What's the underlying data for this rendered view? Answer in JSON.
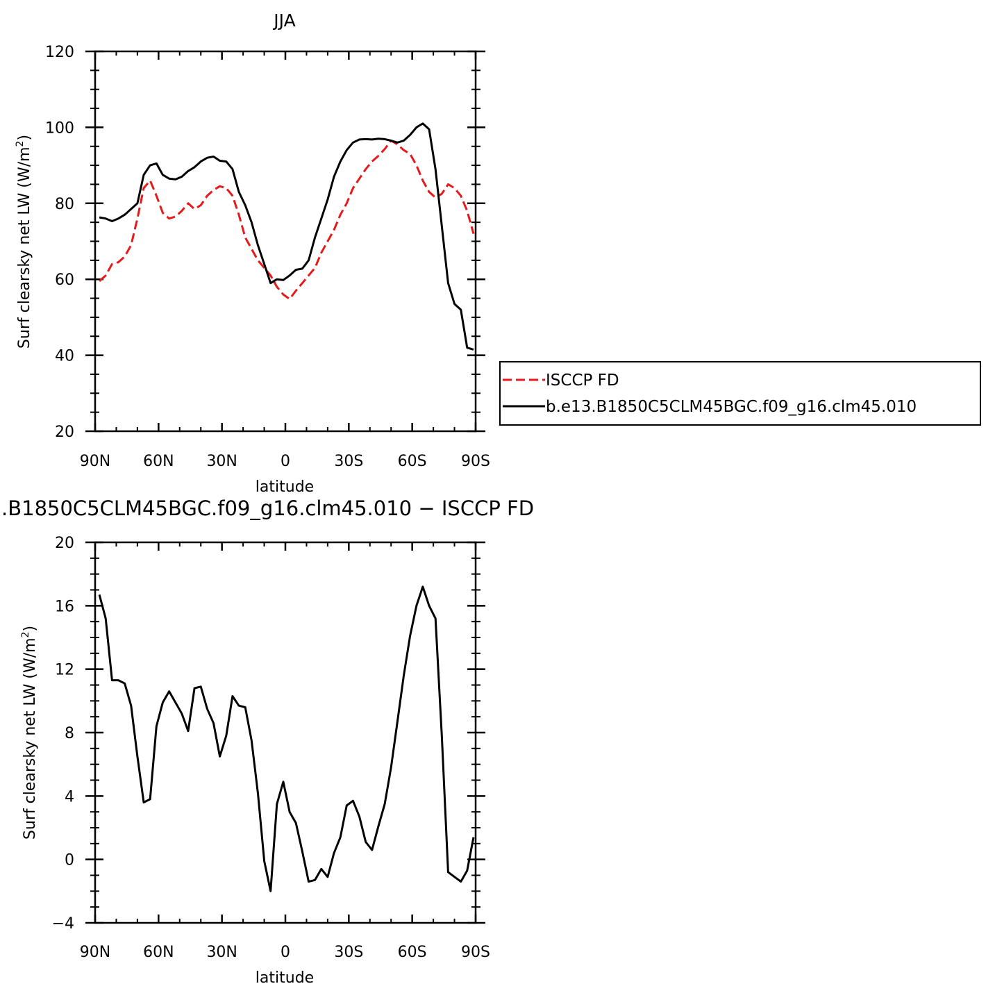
{
  "chart_data": [
    {
      "type": "line",
      "title": "JJA",
      "xlabel": "latitude",
      "ylabel": "Surf clearsky net LW (W/m²)",
      "ylabel_parts": [
        "Surf clearsky net LW (W/m",
        "2",
        ")"
      ],
      "xlim": [
        90,
        -90
      ],
      "ylim": [
        20,
        120
      ],
      "x_ticks": [
        90,
        60,
        30,
        0,
        -30,
        -60,
        -90
      ],
      "x_tick_labels": [
        "90N",
        "60N",
        "30N",
        "0",
        "30S",
        "60S",
        "90S"
      ],
      "y_ticks": [
        20,
        40,
        60,
        80,
        100,
        120
      ],
      "y_tick_labels": [
        "20",
        "40",
        "60",
        "80",
        "100",
        "120"
      ],
      "legend_position": "right",
      "series": [
        {
          "name": "ISCCP FD",
          "color": "#e41a1c",
          "dash": "dashed",
          "x": [
            88,
            85,
            82,
            79,
            76,
            73,
            70,
            67,
            64,
            61,
            58,
            55,
            52,
            49,
            46,
            43,
            40,
            37,
            34,
            31,
            28,
            25,
            22,
            19,
            16,
            13,
            10,
            7,
            4,
            1,
            -2,
            -5,
            -8,
            -11,
            -14,
            -17,
            -20,
            -23,
            -26,
            -29,
            -32,
            -35,
            -38,
            -41,
            -44,
            -47,
            -50,
            -53,
            -56,
            -59,
            -62,
            -65,
            -68,
            -71,
            -74,
            -77,
            -80,
            -83,
            -86,
            -89
          ],
          "y": [
            59.5,
            61,
            64,
            64.5,
            66,
            69,
            76,
            84,
            86,
            82,
            77.5,
            76,
            76.5,
            78,
            80,
            78.5,
            79.5,
            82,
            83.5,
            84.5,
            84,
            82,
            77,
            71,
            68,
            65,
            63,
            61,
            58,
            56,
            54.8,
            57,
            59,
            61,
            63,
            67,
            70,
            73,
            77,
            80,
            84,
            86.5,
            89,
            91,
            92.5,
            94.3,
            96.5,
            95.5,
            94,
            93,
            90,
            86,
            83,
            81.5,
            82.5,
            85,
            84,
            82,
            78,
            72
          ]
        },
        {
          "name": "b.e13.B1850C5CLM45BGC.f09_g16.clm45.010",
          "color": "#000000",
          "dash": "solid",
          "x": [
            88,
            85,
            82,
            79,
            76,
            73,
            70,
            67,
            64,
            61,
            58,
            55,
            52,
            49,
            46,
            43,
            40,
            37,
            34,
            31,
            28,
            25,
            22,
            19,
            16,
            13,
            10,
            7,
            4,
            1,
            -2,
            -5,
            -8,
            -11,
            -14,
            -17,
            -20,
            -23,
            -26,
            -29,
            -32,
            -35,
            -38,
            -41,
            -44,
            -47,
            -50,
            -53,
            -56,
            -59,
            -62,
            -65,
            -68,
            -71,
            -74,
            -77,
            -80,
            -83,
            -86,
            -89
          ],
          "y": [
            76.3,
            76,
            75.3,
            76,
            77,
            78.5,
            80,
            87.5,
            90,
            90.5,
            87.5,
            86.5,
            86.3,
            87,
            88.5,
            89.5,
            91,
            92,
            92.3,
            91.2,
            91,
            89,
            83,
            79.5,
            75,
            69,
            64,
            59,
            60,
            59.8,
            61,
            62.5,
            62.8,
            65,
            71,
            76,
            81,
            87,
            91,
            94,
            96,
            96.8,
            96.9,
            96.8,
            97,
            96.9,
            96.5,
            96,
            96.5,
            98,
            100,
            101,
            99.5,
            89,
            74,
            59,
            53.5,
            52,
            42,
            41.5
          ]
        }
      ]
    },
    {
      "type": "line",
      "title": ".B1850C5CLM45BGC.f09_g16.clm45.010 − ISCCP FD",
      "xlabel": "latitude",
      "ylabel": "Surf clearsky net LW (W/m²)",
      "ylabel_parts": [
        "Surf clearsky net LW (W/m",
        "2",
        ")"
      ],
      "xlim": [
        90,
        -90
      ],
      "ylim": [
        -4,
        20
      ],
      "x_ticks": [
        90,
        60,
        30,
        0,
        -30,
        -60,
        -90
      ],
      "x_tick_labels": [
        "90N",
        "60N",
        "30N",
        "0",
        "30S",
        "60S",
        "90S"
      ],
      "y_ticks": [
        -4,
        0,
        4,
        8,
        12,
        16,
        20
      ],
      "y_tick_labels": [
        "−4",
        "0",
        "4",
        "8",
        "12",
        "16",
        "20"
      ],
      "series": [
        {
          "color": "#000000",
          "dash": "solid",
          "x": [
            88,
            85,
            82,
            79,
            76,
            73,
            70,
            67,
            64,
            61,
            58,
            55,
            52,
            49,
            46,
            43,
            40,
            37,
            34,
            31,
            28,
            25,
            22,
            19,
            16,
            13,
            10,
            7,
            4,
            1,
            -2,
            -5,
            -8,
            -11,
            -14,
            -17,
            -20,
            -23,
            -26,
            -29,
            -32,
            -35,
            -38,
            -41,
            -44,
            -47,
            -50,
            -53,
            -56,
            -59,
            -62,
            -65,
            -68,
            -71,
            -74,
            -77,
            -80,
            -83,
            -86,
            -89
          ],
          "y": [
            16.7,
            15.2,
            11.3,
            11.3,
            11.1,
            9.7,
            6.5,
            3.6,
            3.8,
            8.4,
            9.9,
            10.6,
            9.9,
            9.2,
            8.1,
            10.8,
            10.9,
            9.5,
            8.6,
            6.5,
            7.8,
            10.3,
            9.7,
            9.6,
            7.5,
            4.2,
            -0.1,
            -2,
            3.5,
            4.9,
            3,
            2.3,
            0.5,
            -1.4,
            -1.3,
            -0.6,
            -1.1,
            0.4,
            1.4,
            3.4,
            3.7,
            2.7,
            1.1,
            0.6,
            2.1,
            3.5,
            5.8,
            8.7,
            11.6,
            14.1,
            16,
            17.2,
            16,
            15.2,
            7.8,
            -0.8,
            -1.1,
            -1.4,
            -0.7,
            1.4
          ]
        }
      ]
    }
  ]
}
